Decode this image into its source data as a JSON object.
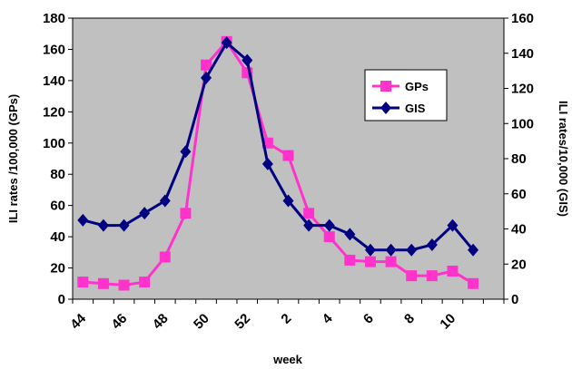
{
  "chart_data": {
    "type": "line",
    "xlabel": "week",
    "ylabel_left": "ILI rates /100,000 (GPs)",
    "ylabel_right": "ILI rates/10,000 (GIS)",
    "ylim_left": [
      0,
      180
    ],
    "ylim_right": [
      0,
      160
    ],
    "yticks_left": [
      "0",
      "20",
      "40",
      "60",
      "80",
      "100",
      "120",
      "140",
      "160",
      "180"
    ],
    "yticks_right": [
      "0",
      "20",
      "40",
      "60",
      "80",
      "100",
      "120",
      "140",
      "160"
    ],
    "x_weeks": [
      44,
      45,
      46,
      47,
      48,
      49,
      50,
      51,
      52,
      1,
      2,
      3,
      4,
      5,
      6,
      7,
      8,
      9,
      10,
      11,
      12
    ],
    "x_tick_labels": [
      "44",
      "46",
      "48",
      "50",
      "52",
      "2",
      "4",
      "6",
      "8",
      "10"
    ],
    "x_tick_weeks": [
      44,
      46,
      48,
      50,
      52,
      2,
      4,
      6,
      8,
      10
    ],
    "plot_background": "#c0c0c0",
    "grid": false,
    "legend_position": "top-right",
    "series": [
      {
        "name": "GPs",
        "axis": "left",
        "color": "#ff33cc",
        "marker": "square",
        "values": [
          11,
          10,
          9,
          11,
          27,
          55,
          150,
          165,
          145,
          100,
          92,
          55,
          40,
          25,
          24,
          24,
          15,
          15,
          18,
          10,
          null
        ]
      },
      {
        "name": "GIS",
        "axis": "right",
        "color": "#000080",
        "marker": "diamond",
        "values": [
          45,
          42,
          42,
          49,
          56,
          84,
          126,
          146,
          136,
          77,
          56,
          42,
          42,
          37,
          28,
          28,
          28,
          31,
          42,
          28,
          null
        ]
      }
    ]
  }
}
